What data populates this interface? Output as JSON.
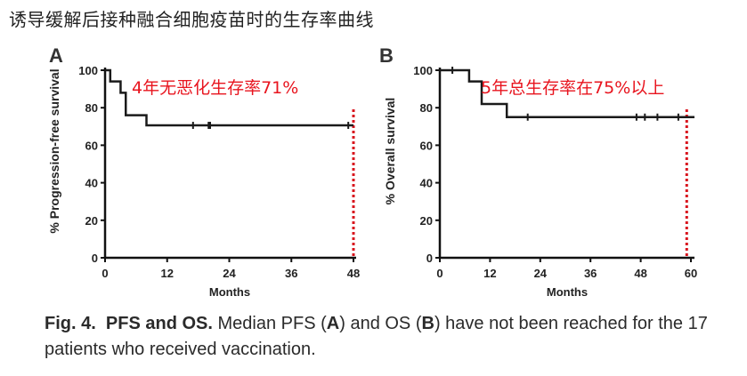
{
  "page_title": "诱导缓解后接种融合细胞疫苗时的生存率曲线",
  "colors": {
    "curve": "#1a1a1a",
    "annotation": "#e8141e",
    "marker_line": "#d8141e"
  },
  "caption": {
    "label": "Fig. 4.",
    "heading": "PFS and OS.",
    "text_1": "Median PFS (",
    "a": "A",
    "text_2": ") and OS (",
    "b": "B",
    "text_3": ") have not been reached for the 17 patients who received vaccination."
  },
  "chart_data": [
    {
      "type": "line",
      "panel_label": "A",
      "title": "",
      "xlabel": "Months",
      "ylabel": "% Progression-free survival",
      "xlim": [
        0,
        48
      ],
      "ylim": [
        0,
        100
      ],
      "xticks": [
        "0",
        "12",
        "24",
        "36",
        "48"
      ],
      "yticks": [
        "0",
        "20",
        "40",
        "60",
        "80",
        "100"
      ],
      "grid": false,
      "annotation": "4年无恶化生存率71%",
      "reference_line_x": 48,
      "series": [
        {
          "step_x": [
            0,
            1,
            3,
            4,
            8,
            48
          ],
          "step_y": [
            100,
            94,
            88,
            76,
            70.6,
            70.6
          ],
          "censored": [
            {
              "x": 17,
              "y": 70.6
            },
            {
              "x": 20,
              "y": 70.6
            },
            {
              "x": 20.3,
              "y": 70.6
            },
            {
              "x": 47,
              "y": 70.6
            }
          ]
        }
      ]
    },
    {
      "type": "line",
      "panel_label": "B",
      "title": "",
      "xlabel": "Months",
      "ylabel": "% Overall survival",
      "xlim": [
        0,
        60
      ],
      "ylim": [
        0,
        100
      ],
      "xticks": [
        "0",
        "12",
        "24",
        "36",
        "48",
        "60"
      ],
      "yticks": [
        "0",
        "20",
        "40",
        "60",
        "80",
        "100"
      ],
      "grid": false,
      "annotation": "5年总生存率在75%以上",
      "reference_line_x": 59,
      "series": [
        {
          "step_x": [
            0,
            7,
            10,
            16,
            61
          ],
          "step_y": [
            100,
            94,
            82,
            75,
            75
          ],
          "censored": [
            {
              "x": 3,
              "y": 100
            },
            {
              "x": 21,
              "y": 75
            },
            {
              "x": 47,
              "y": 75
            },
            {
              "x": 49,
              "y": 75
            },
            {
              "x": 52,
              "y": 75
            },
            {
              "x": 57,
              "y": 75
            }
          ]
        }
      ]
    }
  ]
}
